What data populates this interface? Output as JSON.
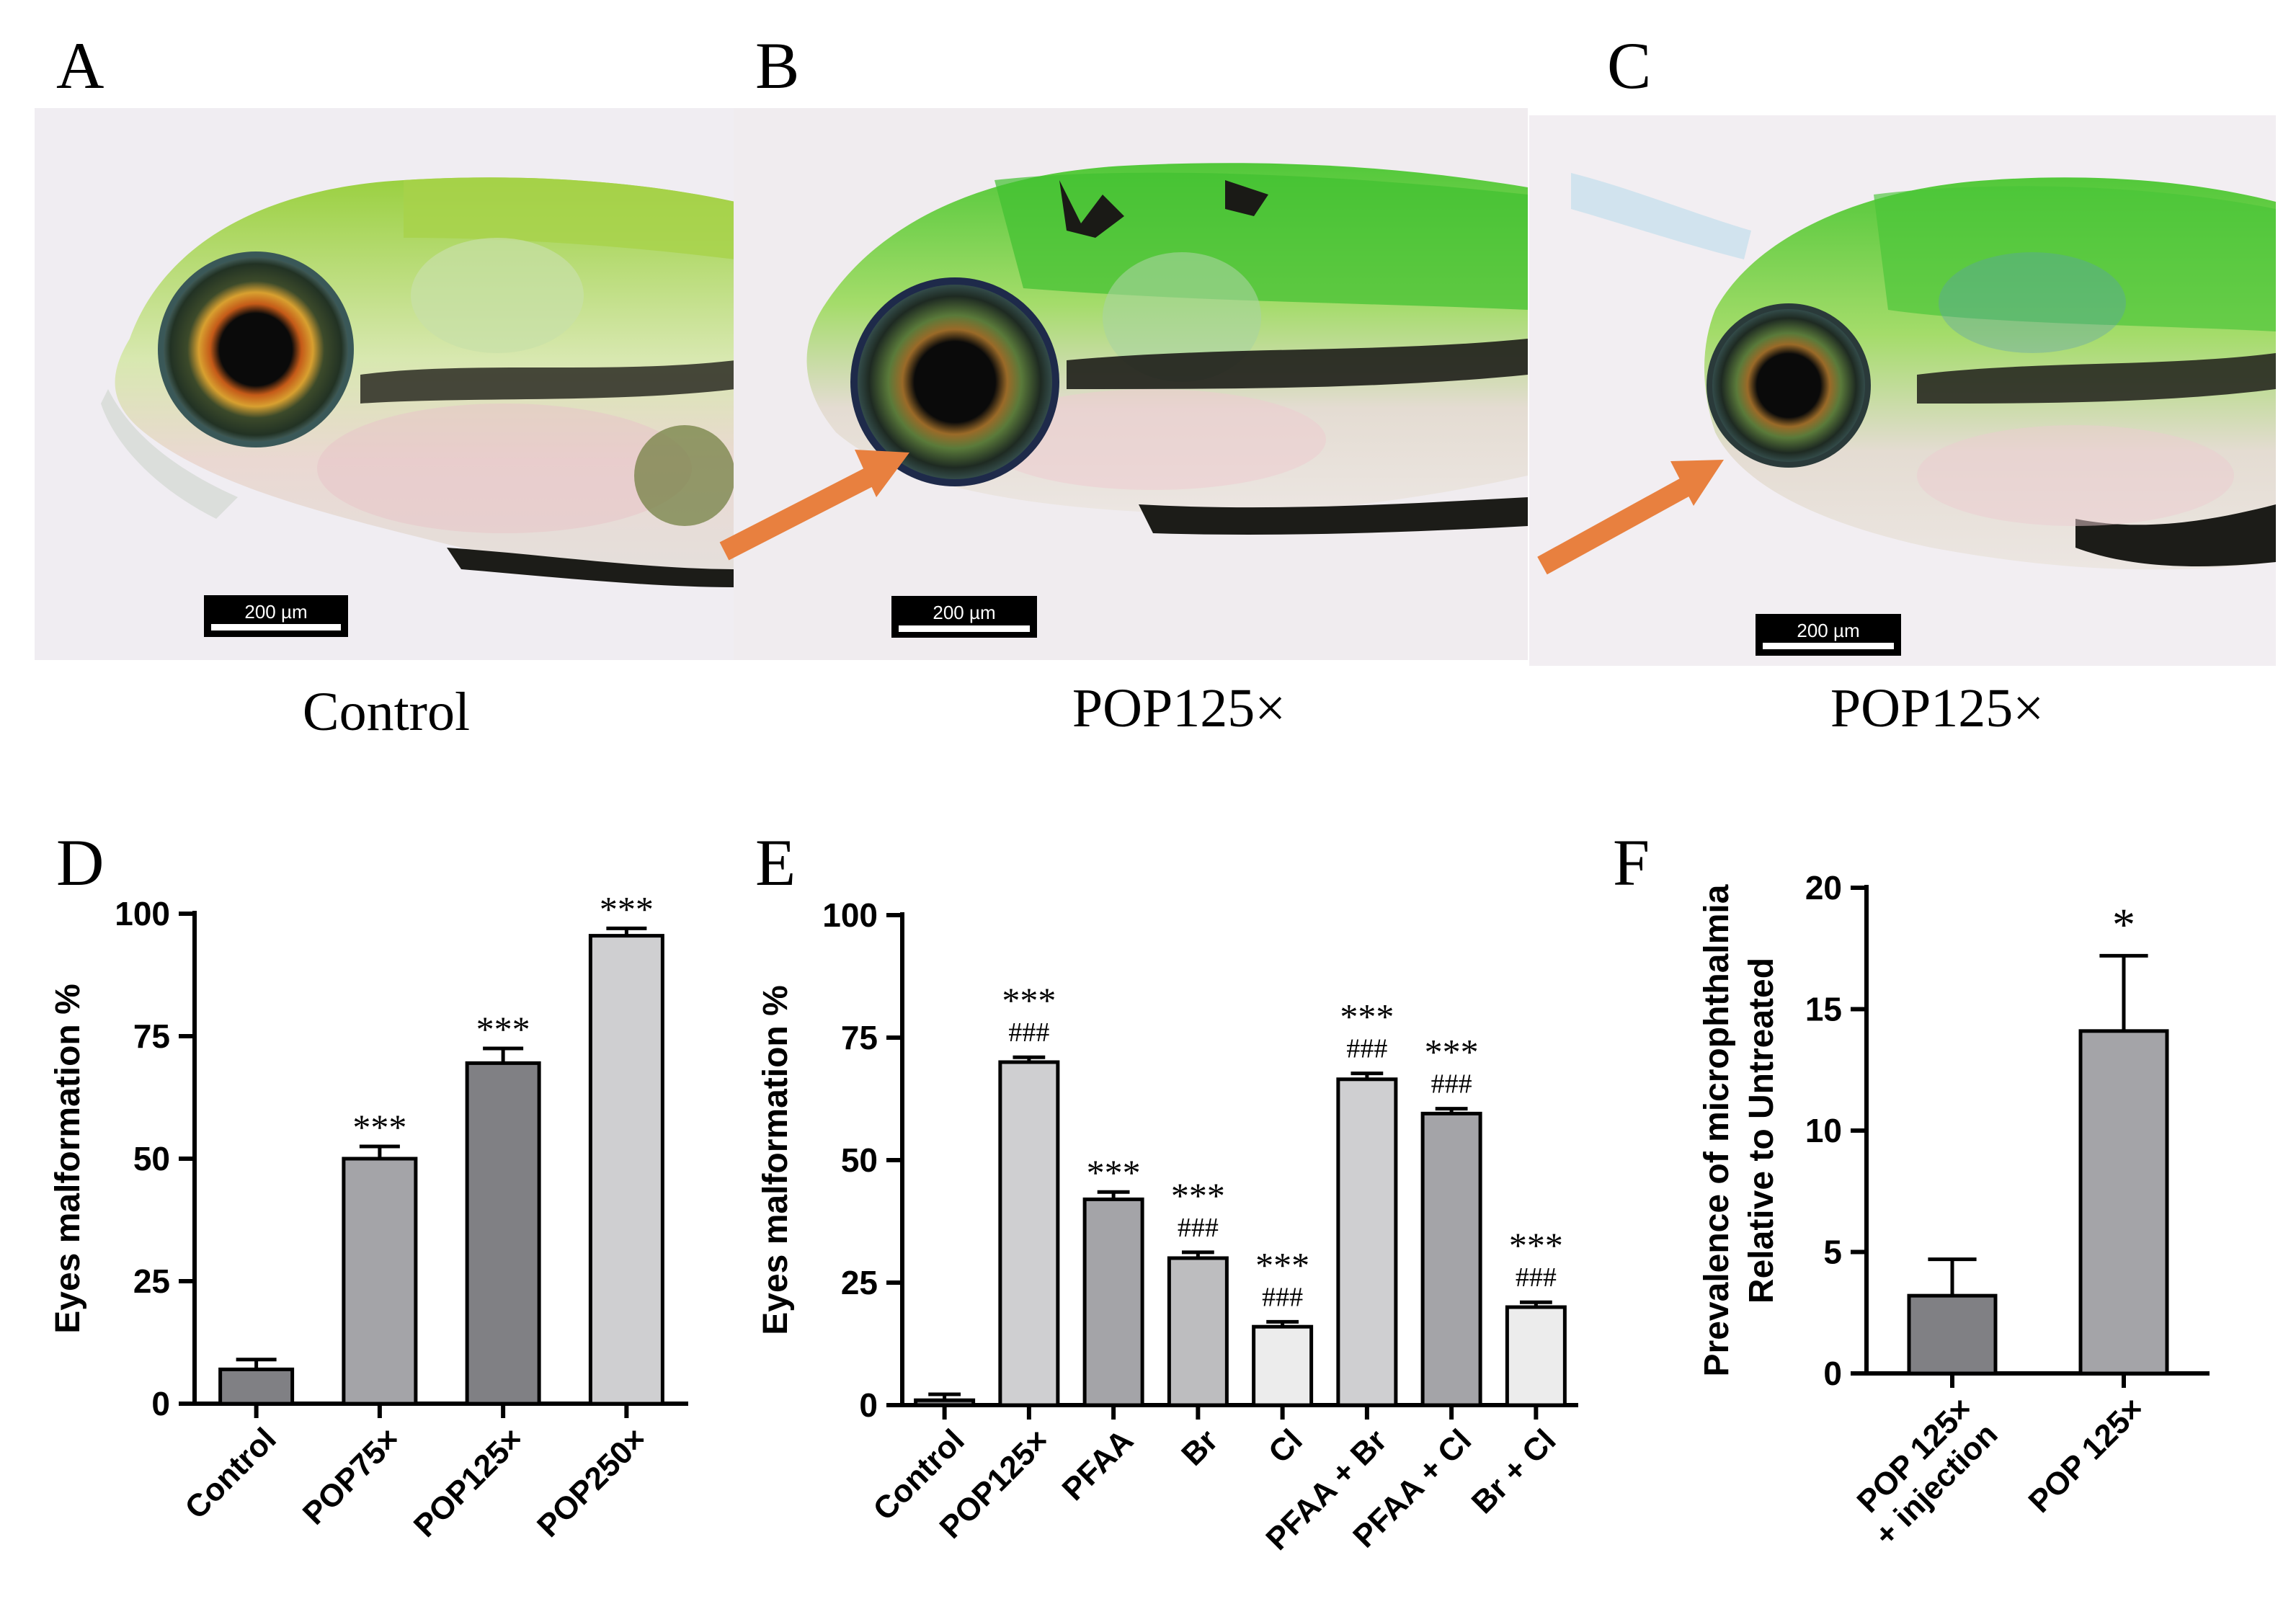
{
  "panels": {
    "A": {
      "letter": "A",
      "caption": "Control",
      "scale_bar": "200 µm",
      "has_arrow": false
    },
    "B": {
      "letter": "B",
      "caption": "POP125×",
      "scale_bar": "200 µm",
      "has_arrow": true
    },
    "C": {
      "letter": "C",
      "caption": "POP125×",
      "scale_bar": "200 µm",
      "has_arrow": true
    },
    "D": {
      "letter": "D"
    },
    "E": {
      "letter": "E"
    },
    "F": {
      "letter": "F"
    }
  },
  "colors": {
    "bar_medium": "#a4a4a8",
    "bar_dark": "#808084",
    "bar_light": "#cfcfd1",
    "bar_lightest": "#ececec",
    "bar_mid2": "#bdbdbf",
    "arrow": "#e8803f",
    "axis": "#000000"
  },
  "chart_data": [
    {
      "id": "D",
      "type": "bar",
      "ylabel": "Eyes malformation %",
      "ylim": [
        0,
        100
      ],
      "yticks": [
        0,
        25,
        50,
        75,
        100
      ],
      "categories": [
        "Control",
        "POP75×",
        "POP125×",
        "POP250×"
      ],
      "values": [
        7,
        50,
        69.5,
        95.5
      ],
      "errors": [
        2,
        2.5,
        3,
        1.5
      ],
      "annotations": [
        "",
        "***",
        "***",
        "***"
      ],
      "secondary_annotations": [
        "",
        "",
        "",
        ""
      ],
      "bar_colors": [
        "#808084",
        "#a4a4a8",
        "#808084",
        "#cfcfd1"
      ]
    },
    {
      "id": "E",
      "type": "bar",
      "ylabel": "Eyes malformation %",
      "ylim": [
        0,
        100
      ],
      "yticks": [
        0,
        25,
        50,
        75,
        100
      ],
      "categories": [
        "Control",
        "POP125×",
        "PFAA",
        "Br",
        "Cl",
        "PFAA + Br",
        "PFAA + Cl",
        "Br + Cl"
      ],
      "values": [
        1,
        70,
        42,
        30,
        16,
        66.5,
        59.5,
        20
      ],
      "errors": [
        1.2,
        1,
        1.5,
        1.2,
        1,
        1.2,
        1,
        1
      ],
      "annotations": [
        "",
        "***",
        "***",
        "***",
        "***",
        "***",
        "***",
        "***"
      ],
      "secondary_annotations": [
        "",
        "###",
        "",
        "###",
        "###",
        "###",
        "###",
        "###"
      ],
      "bar_colors": [
        "#808084",
        "#cfcfd1",
        "#a4a4a8",
        "#bdbdbf",
        "#ececec",
        "#cfcfd1",
        "#a4a4a8",
        "#ececec"
      ]
    },
    {
      "id": "F",
      "type": "bar",
      "ylabel": "Prevalence of microphthalmia",
      "ylabel2": "Relative to Untreated",
      "ylim": [
        0,
        20
      ],
      "yticks": [
        0,
        5,
        10,
        15,
        20
      ],
      "categories": [
        "POP 125×\n+ injection",
        "POP 125×"
      ],
      "values": [
        3.2,
        14.1
      ],
      "errors": [
        1.5,
        3.1
      ],
      "annotations": [
        "",
        "*"
      ],
      "secondary_annotations": [
        "",
        ""
      ],
      "bar_colors": [
        "#808084",
        "#a4a4a8"
      ]
    }
  ]
}
